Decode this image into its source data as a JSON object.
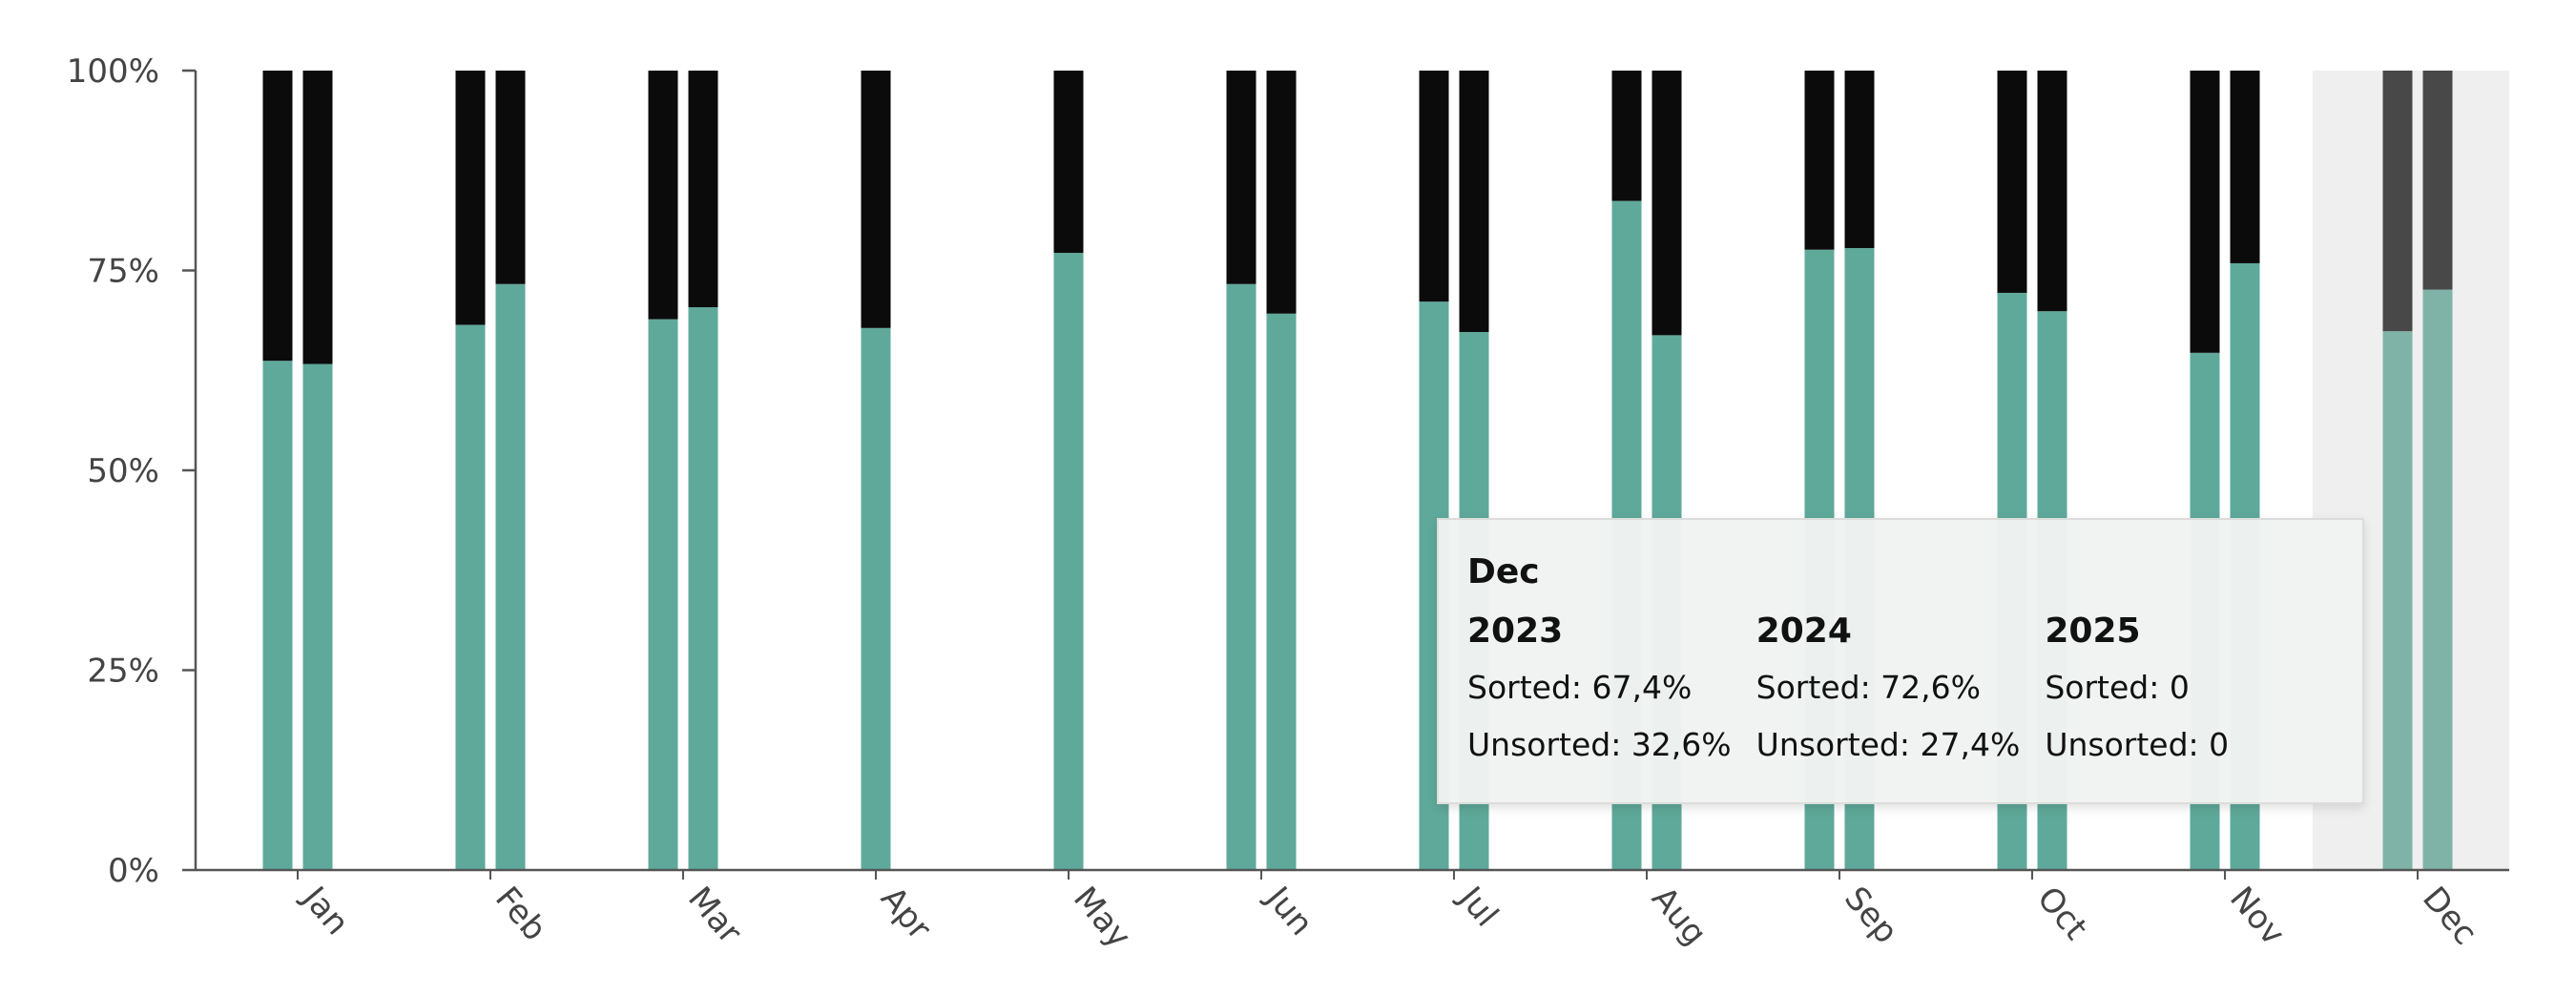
{
  "chart_data": {
    "type": "bar",
    "stacked": true,
    "percent": true,
    "categories": [
      "Jan",
      "Feb",
      "Mar",
      "Apr",
      "May",
      "Jun",
      "Jul",
      "Aug",
      "Sep",
      "Oct",
      "Nov",
      "Dec"
    ],
    "years": [
      "2023",
      "2024"
    ],
    "series": [
      {
        "name": "Sorted",
        "color": "#5fa99a",
        "values_2023": [
          63.7,
          68.2,
          68.9,
          67.8,
          77.2,
          73.3,
          71.1,
          83.7,
          77.6,
          72.2,
          64.7,
          67.4
        ],
        "values_2024": [
          63.3,
          73.3,
          70.4,
          null,
          null,
          69.6,
          67.3,
          66.9,
          77.8,
          69.9,
          75.9,
          72.6
        ]
      },
      {
        "name": "Unsorted",
        "color": "#0b0b0b",
        "values_2023": [
          36.3,
          31.8,
          31.1,
          32.2,
          22.8,
          26.7,
          28.9,
          16.3,
          22.4,
          27.8,
          35.3,
          32.6
        ],
        "values_2024": [
          36.7,
          26.7,
          29.6,
          null,
          null,
          30.4,
          32.7,
          33.1,
          22.2,
          30.1,
          24.1,
          27.4
        ]
      }
    ],
    "y_ticks": [
      "0%",
      "25%",
      "50%",
      "75%",
      "100%"
    ],
    "ylim": [
      0,
      100
    ],
    "highlighted_category": "Dec",
    "grid": false
  },
  "tooltip": {
    "title": "Dec",
    "columns": [
      {
        "year": "2023",
        "sorted": "Sorted: 67,4%",
        "unsorted": "Unsorted: 32,6%"
      },
      {
        "year": "2024",
        "sorted": "Sorted: 72,6%",
        "unsorted": "Unsorted: 27,4%"
      },
      {
        "year": "2025",
        "sorted": "Sorted: 0",
        "unsorted": "Unsorted: 0"
      }
    ]
  }
}
